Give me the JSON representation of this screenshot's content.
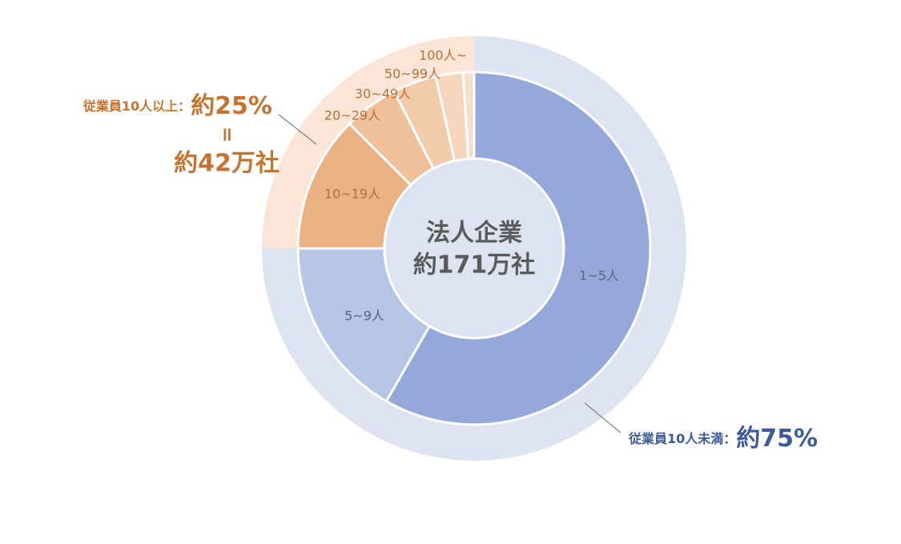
{
  "chart_data": {
    "type": "donut",
    "center_text": [
      "法人企業",
      "約171万社"
    ],
    "rings": [
      {
        "categories": [
          "1~5人",
          "5~9人",
          "10~19人",
          "20~29人",
          "30~49人",
          "50~99人",
          "100人~"
        ],
        "values": [
          58.3,
          16.7,
          12.5,
          5,
          4,
          2.5,
          1
        ],
        "colors": [
          "#94a9d9",
          "#b4c5e6",
          "#eab283",
          "#efc09a",
          "#f2cbab",
          "#f5d6bd",
          "#f7ddc9"
        ]
      },
      {
        "categories": [
          "従業員10人未満：",
          "従業員10人以上："
        ],
        "values": [
          75,
          25
        ],
        "value_labels": [
          "約75%",
          "約25%"
        ],
        "colors": [
          "#dde3f1",
          "#fbe5d6"
        ],
        "label_colors": [
          "#3f5a9a",
          "#c5732e"
        ]
      }
    ],
    "annotations": [
      "=",
      "約42万社"
    ]
  }
}
